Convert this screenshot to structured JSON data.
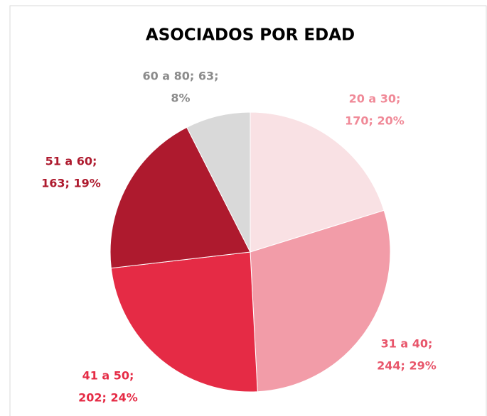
{
  "chart_data": {
    "type": "pie",
    "title": "ASOCIADOS POR EDAD",
    "values": [
      170,
      244,
      202,
      163,
      63
    ],
    "value_labels": [
      [
        "20 a 30;",
        "170; 20%"
      ],
      [
        "31 a 40;",
        "244; 29%"
      ],
      [
        "41 a 50;",
        "202; 24%"
      ],
      [
        "51 a 60;",
        "163; 19%"
      ],
      [
        "60 a 80; 63;",
        "8%"
      ]
    ],
    "colors": [
      "#f9e1e4",
      "#f29ca8",
      "#e52b45",
      "#ae1a2e",
      "#d9d9d9"
    ],
    "label_colors": [
      "#f08a98",
      "#e8566b",
      "#e52b45",
      "#ae1a2e",
      "#8c8c8c"
    ]
  }
}
